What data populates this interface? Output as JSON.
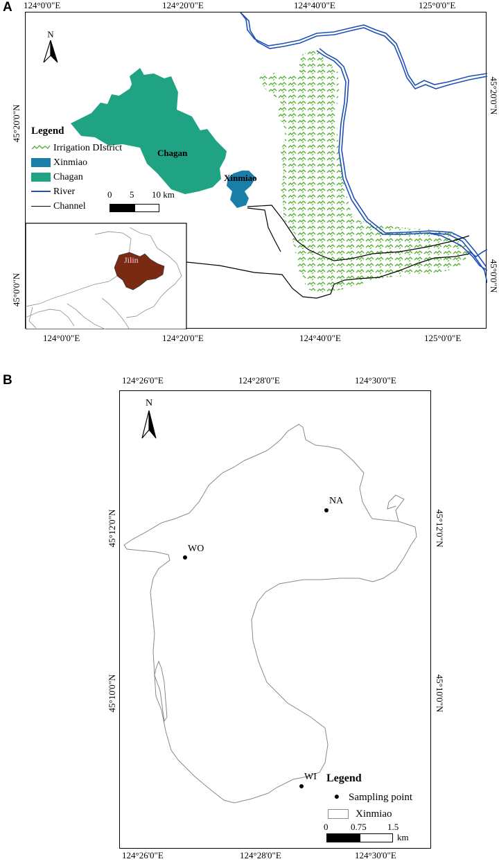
{
  "panel_a": {
    "letter": "A",
    "top_coords": [
      "124°0'0\"E",
      "124°20'0\"E",
      "124°40'0\"E",
      "125°0'0\"E"
    ],
    "bottom_coords": [
      "124°0'0\"E",
      "124°20'0\"E",
      "124°40'0\"E",
      "125°0'0\"E"
    ],
    "left_coords": [
      "45°20'0\"N",
      "45°0'0\"N"
    ],
    "right_coords": [
      "45°20'0\"N",
      "45°0'0\"N"
    ],
    "north": "N",
    "labels": {
      "chagan": "Chagan",
      "xinmiao": "Xinmiao",
      "jilin": "Jilin"
    },
    "legend": {
      "title": "Legend",
      "items": [
        "Irrigation DIstrict",
        "Xinmiao",
        "Chagan",
        "River",
        "Channel"
      ]
    },
    "scale": {
      "ticks": [
        "0",
        "5",
        "10 km"
      ]
    },
    "colors": {
      "chagan": "#1fa383",
      "xinmiao": "#1a7fa8",
      "river": "#1d4fb5",
      "irrigation": "#4caf2a",
      "jilin": "#7a2a12"
    }
  },
  "panel_b": {
    "letter": "B",
    "top_coords": [
      "124°26'0\"E",
      "124°28'0\"E",
      "124°30'0\"E"
    ],
    "bottom_coords": [
      "124°26'0\"E",
      "124°28'0\"E",
      "124°30'0\"E"
    ],
    "left_coords": [
      "45°12'0\"N",
      "45°10'0\"N"
    ],
    "right_coords": [
      "45°12'0\"N",
      "45°10'0\"N"
    ],
    "north": "N",
    "points": [
      "NA",
      "WO",
      "WI"
    ],
    "legend": {
      "title": "Legend",
      "items": [
        "Sampling point",
        "Xinmiao"
      ]
    },
    "scale": {
      "ticks": [
        "0",
        "0.75",
        "1.5"
      ],
      "unit": "km"
    }
  }
}
